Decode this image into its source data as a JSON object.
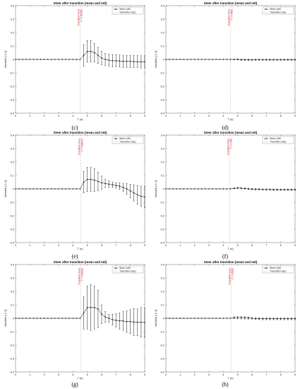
{
  "figure": {
    "captions": [
      "(c)",
      "(d)",
      "(e)",
      "(f)",
      "(g)",
      "(h)"
    ]
  },
  "chart_data": [
    {
      "type": "line",
      "caption": "(c)",
      "title": "Steer after transition (mean and std)",
      "xlabel": "T (s)",
      "ylabel": "Variable [-1:1]",
      "xlim": [
        0,
        9
      ],
      "ylim": [
        -0.4,
        0.4
      ],
      "xticks": [
        0,
        1,
        2,
        3,
        4,
        5,
        6,
        7,
        8,
        9
      ],
      "yticks": [
        -0.4,
        -0.3,
        -0.2,
        -0.1,
        0,
        0.1,
        0.2,
        0.3,
        0.4
      ],
      "legend": [
        "Steer A/M",
        "Transition step"
      ],
      "legend_position": "top-right",
      "transition": {
        "x": 4.5,
        "label_lines": [
          "Transition time",
          "t = 4.5925s"
        ]
      },
      "series": [
        {
          "name": "Steer A/M",
          "x": [
            0,
            0.25,
            0.5,
            0.75,
            1,
            1.25,
            1.5,
            1.75,
            2,
            2.25,
            2.5,
            2.75,
            3,
            3.25,
            3.5,
            3.75,
            4,
            4.25,
            4.5,
            4.75,
            5,
            5.25,
            5.5,
            5.75,
            6,
            6.25,
            6.5,
            6.75,
            7,
            7.25,
            7.5,
            7.75,
            8,
            8.25,
            8.5,
            8.75,
            9
          ],
          "y": [
            0,
            0,
            0,
            0,
            0,
            0,
            0,
            0,
            0,
            0,
            0,
            0,
            0,
            0,
            0,
            0,
            0,
            0,
            0,
            0.03,
            0.06,
            0.06,
            0.05,
            0.03,
            0.01,
            0,
            -0.005,
            -0.01,
            -0.01,
            -0.012,
            -0.015,
            -0.015,
            -0.015,
            -0.016,
            -0.017,
            -0.018,
            -0.018
          ],
          "std": [
            0,
            0,
            0,
            0,
            0,
            0,
            0,
            0,
            0,
            0,
            0,
            0,
            0,
            0,
            0,
            0,
            0,
            0,
            0,
            0.08,
            0.08,
            0.08,
            0.07,
            0.06,
            0.05,
            0.045,
            0.045,
            0.045,
            0.045,
            0.045,
            0.045,
            0.045,
            0.045,
            0.045,
            0.045,
            0.045,
            0.045
          ]
        }
      ]
    },
    {
      "type": "line",
      "caption": "(d)",
      "title": "Steer after transition (mean and std)",
      "xlabel": "T (s)",
      "ylabel": "Variable [-1:1]",
      "xlim": [
        0,
        9
      ],
      "ylim": [
        -0.4,
        0.4
      ],
      "xticks": [
        0,
        1,
        2,
        3,
        4,
        5,
        6,
        7,
        8,
        9
      ],
      "yticks": [
        -0.4,
        -0.3,
        -0.2,
        -0.1,
        0,
        0.1,
        0.2,
        0.3,
        0.4
      ],
      "legend": [
        "Steer A/M",
        "Transition step"
      ],
      "legend_position": "top-right",
      "transition": {
        "x": 4.5,
        "label_lines": [
          "Transition time",
          "t = 4.455s"
        ]
      },
      "series": [
        {
          "name": "Steer A/M",
          "x": [
            0,
            0.25,
            0.5,
            0.75,
            1,
            1.25,
            1.5,
            1.75,
            2,
            2.25,
            2.5,
            2.75,
            3,
            3.25,
            3.5,
            3.75,
            4,
            4.25,
            4.5,
            4.75,
            5,
            5.25,
            5.5,
            5.75,
            6,
            6.25,
            6.5,
            6.75,
            7,
            7.25,
            7.5,
            7.75,
            8,
            8.25,
            8.5,
            8.75,
            9
          ],
          "y": [
            0,
            0,
            0,
            0,
            0,
            0,
            0,
            0,
            0,
            0,
            0,
            0,
            0,
            0,
            0,
            0,
            0,
            0,
            0,
            0,
            0,
            -0.002,
            -0.003,
            -0.003,
            -0.003,
            -0.002,
            -0.002,
            -0.002,
            -0.002,
            -0.002,
            -0.002,
            -0.002,
            -0.002,
            -0.002,
            -0.002,
            -0.002,
            -0.002
          ],
          "std": [
            0,
            0,
            0,
            0,
            0,
            0,
            0,
            0,
            0,
            0,
            0,
            0,
            0,
            0,
            0,
            0,
            0,
            0,
            0,
            0.003,
            0.004,
            0.005,
            0.005,
            0.005,
            0.004,
            0.004,
            0.004,
            0.004,
            0.004,
            0.004,
            0.004,
            0.004,
            0.004,
            0.004,
            0.004,
            0.004,
            0.004
          ]
        }
      ]
    },
    {
      "type": "line",
      "caption": "(e)",
      "title": "Steer after transition (mean and std)",
      "xlabel": "T (s)",
      "ylabel": "Variable [-1:1]",
      "xlim": [
        0,
        9
      ],
      "ylim": [
        -0.4,
        0.4
      ],
      "xticks": [
        0,
        1,
        2,
        3,
        4,
        5,
        6,
        7,
        8,
        9
      ],
      "yticks": [
        -0.4,
        -0.3,
        -0.2,
        -0.1,
        0,
        0.1,
        0.2,
        0.3,
        0.4
      ],
      "legend": [
        "Steer A/M",
        "Transition step"
      ],
      "legend_position": "top-right",
      "transition": {
        "x": 4.55,
        "label_lines": [
          "Transition time",
          "t = 4.6807s"
        ]
      },
      "series": [
        {
          "name": "Steer A/M",
          "x": [
            0,
            0.25,
            0.5,
            0.75,
            1,
            1.25,
            1.5,
            1.75,
            2,
            2.25,
            2.5,
            2.75,
            3,
            3.25,
            3.5,
            3.75,
            4,
            4.25,
            4.5,
            4.75,
            5,
            5.25,
            5.5,
            5.75,
            6,
            6.25,
            6.5,
            6.75,
            7,
            7.25,
            7.5,
            7.75,
            8,
            8.25,
            8.5,
            8.75,
            9
          ],
          "y": [
            0,
            0,
            0,
            0,
            0,
            0,
            0,
            0,
            0,
            0,
            0,
            0,
            0,
            0,
            0,
            0,
            0,
            0,
            0,
            0.05,
            0.07,
            0.07,
            0.065,
            0.055,
            0.045,
            0.04,
            0.035,
            0.03,
            0.025,
            0.02,
            0.01,
            0,
            -0.015,
            -0.03,
            -0.045,
            -0.055,
            -0.06
          ],
          "std": [
            0,
            0,
            0,
            0,
            0,
            0,
            0,
            0,
            0,
            0,
            0,
            0,
            0,
            0,
            0,
            0,
            0,
            0,
            0,
            0.08,
            0.09,
            0.09,
            0.085,
            0.07,
            0.05,
            0.03,
            0.025,
            0.02,
            0.02,
            0.025,
            0.03,
            0.04,
            0.05,
            0.06,
            0.07,
            0.075,
            0.08
          ]
        }
      ]
    },
    {
      "type": "line",
      "caption": "(f)",
      "title": "Steer after transition (mean and std)",
      "xlabel": "T (s)",
      "ylabel": "Variable [-1:1]",
      "xlim": [
        0,
        9
      ],
      "ylim": [
        -0.4,
        0.4
      ],
      "xticks": [
        0,
        1,
        2,
        3,
        4,
        5,
        6,
        7,
        8,
        9
      ],
      "yticks": [
        -0.4,
        -0.3,
        -0.2,
        -0.1,
        0,
        0.1,
        0.2,
        0.3,
        0.4
      ],
      "legend": [
        "Steer A/M",
        "Transition step"
      ],
      "legend_position": "top-right",
      "transition": {
        "x": 4.45,
        "label_lines": [
          "Transition time",
          "t = 4.45s"
        ]
      },
      "series": [
        {
          "name": "Steer A/M",
          "x": [
            0,
            0.25,
            0.5,
            0.75,
            1,
            1.25,
            1.5,
            1.75,
            2,
            2.25,
            2.5,
            2.75,
            3,
            3.25,
            3.5,
            3.75,
            4,
            4.25,
            4.5,
            4.75,
            5,
            5.25,
            5.5,
            5.75,
            6,
            6.25,
            6.5,
            6.75,
            7,
            7.25,
            7.5,
            7.75,
            8,
            8.25,
            8.5,
            8.75,
            9
          ],
          "y": [
            0,
            0,
            0,
            0,
            0,
            0,
            0,
            0,
            0,
            0,
            0,
            0,
            0,
            0,
            0,
            0,
            0,
            0,
            0,
            0.004,
            0.006,
            0.005,
            0.002,
            0,
            -0.002,
            -0.003,
            -0.004,
            -0.005,
            -0.005,
            -0.005,
            -0.006,
            -0.006,
            -0.006,
            -0.006,
            -0.006,
            -0.006,
            -0.006
          ],
          "std": [
            0,
            0,
            0,
            0,
            0,
            0,
            0,
            0,
            0,
            0,
            0,
            0,
            0,
            0,
            0,
            0,
            0,
            0,
            0,
            0.004,
            0.005,
            0.005,
            0.005,
            0.005,
            0.005,
            0.005,
            0.005,
            0.005,
            0.005,
            0.005,
            0.005,
            0.005,
            0.005,
            0.005,
            0.005,
            0.005,
            0.005
          ]
        }
      ]
    },
    {
      "type": "line",
      "caption": "(g)",
      "title": "Steer after transition (mean and std)",
      "xlabel": "T (s)",
      "ylabel": "Variable [-1:1]",
      "xlim": [
        0,
        9
      ],
      "ylim": [
        -0.4,
        0.4
      ],
      "xticks": [
        0,
        1,
        2,
        3,
        4,
        5,
        6,
        7,
        8,
        9
      ],
      "yticks": [
        -0.4,
        -0.3,
        -0.2,
        -0.1,
        0,
        0.1,
        0.2,
        0.3,
        0.4
      ],
      "legend": [
        "Steer A/M",
        "Transition step"
      ],
      "legend_position": "top-right",
      "transition": {
        "x": 4.55,
        "label_lines": [
          "Transition time",
          "t = 4.5825s"
        ]
      },
      "series": [
        {
          "name": "Steer A/M",
          "x": [
            0,
            0.25,
            0.5,
            0.75,
            1,
            1.25,
            1.5,
            1.75,
            2,
            2.25,
            2.5,
            2.75,
            3,
            3.25,
            3.5,
            3.75,
            4,
            4.25,
            4.5,
            4.75,
            5,
            5.25,
            5.5,
            5.75,
            6,
            6.25,
            6.5,
            6.75,
            7,
            7.25,
            7.5,
            7.75,
            8,
            8.25,
            8.5,
            8.75,
            9
          ],
          "y": [
            0,
            0,
            0,
            0,
            0,
            0,
            0,
            0,
            0,
            0,
            0,
            0,
            0,
            0,
            0,
            0,
            0,
            0,
            0,
            0.04,
            0.08,
            0.08,
            0.08,
            0.07,
            0.03,
            0.01,
            0,
            -0.01,
            -0.015,
            -0.02,
            -0.02,
            -0.025,
            -0.025,
            -0.028,
            -0.03,
            -0.03,
            -0.032
          ],
          "std": [
            0,
            0,
            0,
            0,
            0,
            0,
            0,
            0,
            0,
            0,
            0,
            0,
            0,
            0,
            0,
            0,
            0,
            0,
            0,
            0.12,
            0.16,
            0.17,
            0.16,
            0.14,
            0.07,
            0.04,
            0.03,
            0.04,
            0.05,
            0.06,
            0.07,
            0.08,
            0.09,
            0.1,
            0.1,
            0.11,
            0.11
          ]
        }
      ]
    },
    {
      "type": "line",
      "caption": "(h)",
      "title": "Steer after transition (mean and std)",
      "xlabel": "T (s)",
      "ylabel": "Variable [-1:1]",
      "xlim": [
        0,
        9
      ],
      "ylim": [
        -0.4,
        0.4
      ],
      "xticks": [
        0,
        1,
        2,
        3,
        4,
        5,
        6,
        7,
        8,
        9
      ],
      "yticks": [
        -0.4,
        -0.3,
        -0.2,
        -0.1,
        0,
        0.1,
        0.2,
        0.3,
        0.4
      ],
      "legend": [
        "Steer A/M",
        "Transition step"
      ],
      "legend_position": "top-right",
      "transition": {
        "x": 4.55,
        "label_lines": [
          "Transition time",
          "t = 4.505s"
        ]
      },
      "series": [
        {
          "name": "Steer A/M",
          "x": [
            0,
            0.25,
            0.5,
            0.75,
            1,
            1.25,
            1.5,
            1.75,
            2,
            2.25,
            2.5,
            2.75,
            3,
            3.25,
            3.5,
            3.75,
            4,
            4.25,
            4.5,
            4.75,
            5,
            5.25,
            5.5,
            5.75,
            6,
            6.25,
            6.5,
            6.75,
            7,
            7.25,
            7.5,
            7.75,
            8,
            8.25,
            8.5,
            8.75,
            9
          ],
          "y": [
            0,
            0,
            0,
            0,
            0,
            0,
            0,
            0,
            0,
            0,
            0,
            0,
            0,
            0,
            0,
            0,
            0,
            0,
            0,
            0.004,
            0.005,
            0.005,
            0.004,
            0.002,
            0,
            -0.002,
            -0.003,
            -0.004,
            -0.004,
            -0.004,
            -0.004,
            -0.004,
            -0.004,
            -0.004,
            -0.004,
            -0.004,
            -0.004
          ],
          "std": [
            0,
            0,
            0,
            0,
            0,
            0,
            0,
            0,
            0,
            0,
            0,
            0,
            0,
            0,
            0,
            0,
            0,
            0,
            0,
            0.008,
            0.01,
            0.01,
            0.01,
            0.008,
            0.007,
            0.007,
            0.007,
            0.007,
            0.007,
            0.007,
            0.007,
            0.007,
            0.007,
            0.007,
            0.007,
            0.007,
            0.007
          ]
        }
      ]
    }
  ]
}
